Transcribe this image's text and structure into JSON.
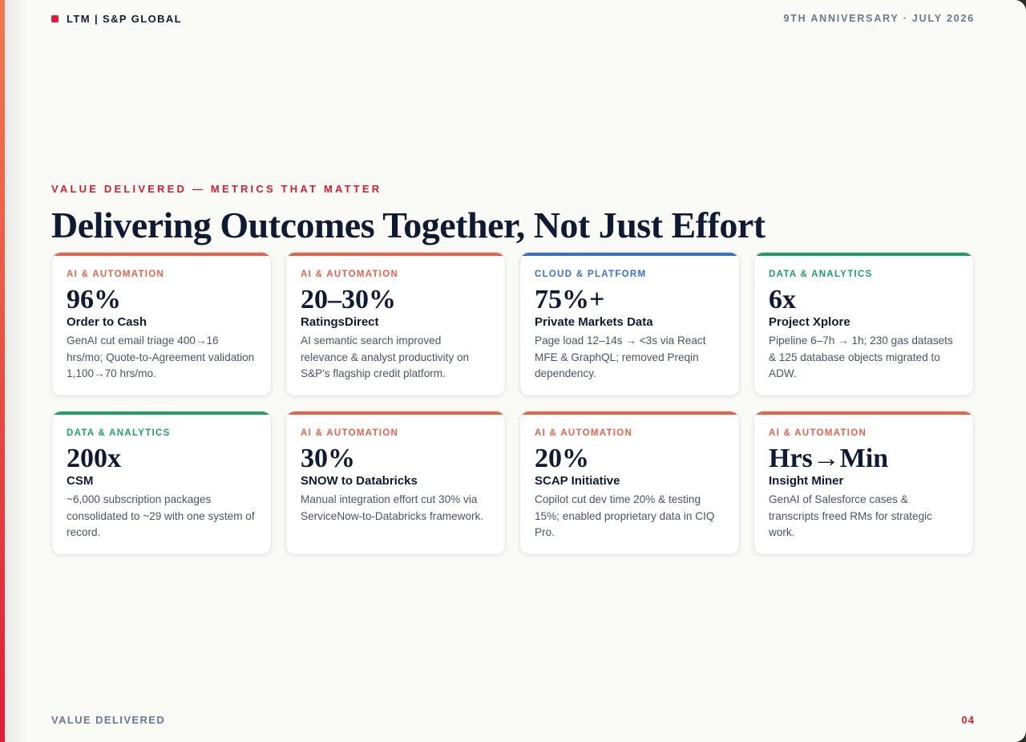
{
  "header": {
    "brand": "LTM | S&P GLOBAL",
    "edition": "9TH ANNIVERSARY · JULY 2026"
  },
  "section": {
    "eyebrow": "VALUE DELIVERED — METRICS THAT MATTER",
    "title": "Delivering Outcomes Together, Not Just Effort"
  },
  "colors": {
    "ai": "#e5634a",
    "cloud": "#3a6fd0",
    "data": "#1fa06a",
    "accent_red": "#d0202f",
    "navy": "#0f1a33"
  },
  "cards": [
    {
      "category": "AI & AUTOMATION",
      "color": "#e5634a",
      "metric": "96%",
      "name": "Order to Cash",
      "description": "GenAI cut email triage 400→16 hrs/mo; Quote-to-Agreement validation 1,100→70 hrs/mo."
    },
    {
      "category": "AI & AUTOMATION",
      "color": "#e5634a",
      "metric": "20–30%",
      "name": "RatingsDirect",
      "description": "AI semantic search improved relevance & analyst productivity on S&P's flagship credit platform."
    },
    {
      "category": "CLOUD & PLATFORM",
      "color": "#3a6fd0",
      "metric": "75%+",
      "name": "Private Markets Data",
      "description": "Page load 12–14s → <3s via React MFE & GraphQL; removed Preqin dependency."
    },
    {
      "category": "DATA & ANALYTICS",
      "color": "#1fa06a",
      "metric": "6x",
      "name": "Project Xplore",
      "description": "Pipeline 6–7h → 1h; 230 gas datasets & 125 database objects migrated to ADW."
    },
    {
      "category": "DATA & ANALYTICS",
      "color": "#1fa06a",
      "metric": "200x",
      "name": "CSM",
      "description": "~6,000 subscription packages consolidated to ~29 with one system of record."
    },
    {
      "category": "AI & AUTOMATION",
      "color": "#e5634a",
      "metric": "30%",
      "name": "SNOW to Databricks",
      "description": "Manual integration effort cut 30% via ServiceNow-to-Databricks framework."
    },
    {
      "category": "AI & AUTOMATION",
      "color": "#e5634a",
      "metric": "20%",
      "name": "SCAP Initiative",
      "description": "Copilot cut dev time 20% & testing 15%; enabled proprietary data in CIQ Pro."
    },
    {
      "category": "AI & AUTOMATION",
      "color": "#e5634a",
      "metric": "Hrs→Min",
      "name": "Insight Miner",
      "description": "GenAI of Salesforce cases & transcripts freed RMs for strategic work."
    }
  ],
  "footer": {
    "label": "VALUE DELIVERED",
    "page": "04"
  }
}
